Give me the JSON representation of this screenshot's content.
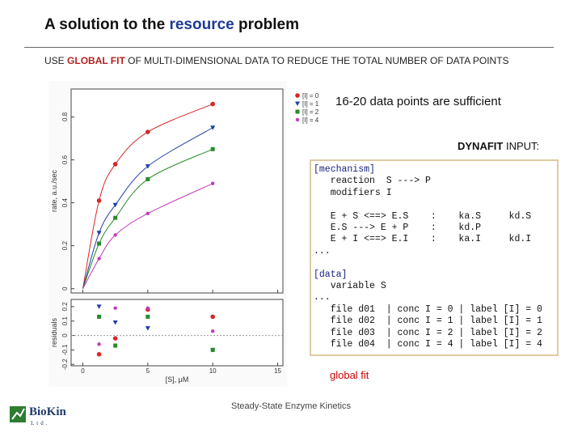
{
  "header": {
    "before": "A solution to the",
    "highlight": "resource",
    "after": "problem"
  },
  "subtitle": {
    "before": "USE",
    "highlight": "GLOBAL FIT",
    "after": "OF MULTI-DIMENSIONAL DATA TO REDUCE THE TOTAL NUMBER OF DATA POINTS"
  },
  "chart_data": {
    "type": "scatter",
    "ylabel": "rate, a.u./sec",
    "residual_label": "residuals",
    "xlabel": "[S], μM",
    "x": [
      1.25,
      2.5,
      5,
      10
    ],
    "xlim": [
      -0.9,
      15.4
    ],
    "xticks": [
      0,
      5,
      10,
      15
    ],
    "ylim": [
      -0.02,
      0.93
    ],
    "yticks": [
      0,
      0.2,
      0.4,
      0.6,
      0.8
    ],
    "residual_ylim": [
      -0.21,
      0.25
    ],
    "residual_ticks": [
      0.2,
      0.1,
      0,
      -0.1,
      -0.2
    ],
    "series": [
      {
        "name": "[I] = 0",
        "color": "#d62728",
        "values": [
          0.41,
          0.58,
          0.73,
          0.86
        ],
        "residuals": [
          -0.13,
          -0.02,
          0.18,
          0.13
        ]
      },
      {
        "name": "[I] = 1",
        "color": "#1f3fa8",
        "values": [
          0.26,
          0.39,
          0.57,
          0.75
        ],
        "residuals": [
          0.2,
          0.09,
          0.05,
          -0.1
        ]
      },
      {
        "name": "[I] = 2",
        "color": "#2a8a2a",
        "values": [
          0.21,
          0.33,
          0.51,
          0.65
        ],
        "residuals": [
          0.13,
          -0.07,
          0.13,
          -0.1
        ]
      },
      {
        "name": "[I] = 4",
        "color": "#c03cc0",
        "values": [
          0.14,
          0.25,
          0.35,
          0.49
        ],
        "residuals": [
          -0.06,
          0.19,
          0.19,
          0.03
        ]
      }
    ]
  },
  "note": "16-20 data points are sufficient",
  "dynafit": {
    "label_bold": "DYNAFIT",
    "label_rest": "INPUT:",
    "blocks": [
      [
        "[mechanism]",
        "   reaction  S ---> P",
        "   modifiers I"
      ],
      [
        "   E + S <==> E.S    :    ka.S     kd.S",
        "   E.S ---> E + P    :    kd.P",
        "   E + I <==> E.I    :    ka.I     kd.I",
        "..."
      ],
      [
        "[data]",
        "   variable S",
        "...",
        "   file d01  | conc I = 0 | label [I] = 0",
        "   file d02  | conc I = 1 | label [I] = 1",
        "   file d03  | conc I = 2 | label [I] = 2",
        "   file d04  | conc I = 4 | label [I] = 4"
      ]
    ],
    "caption": "global fit"
  },
  "footer": "Steady-State Enzyme Kinetics",
  "logo": {
    "name": "BioKin",
    "suffix": "Ltd."
  }
}
